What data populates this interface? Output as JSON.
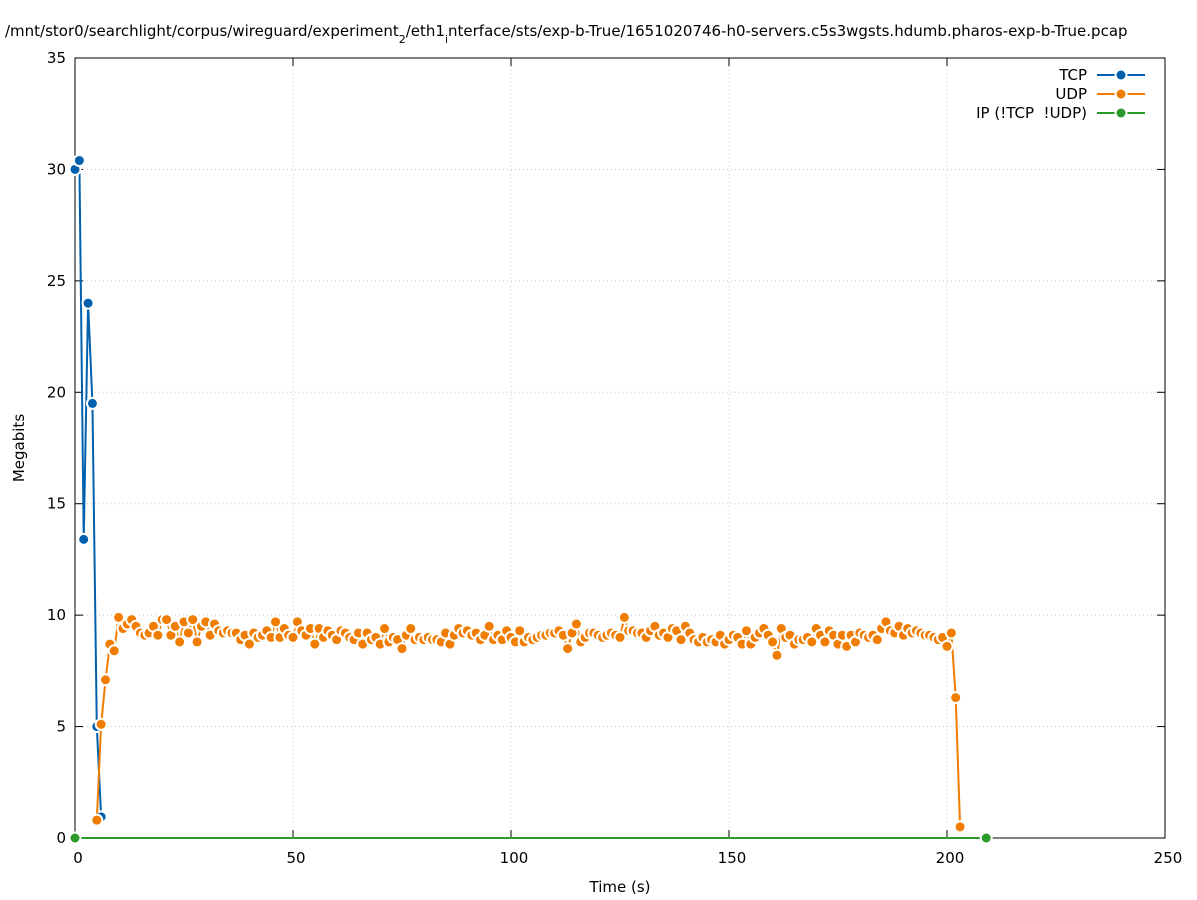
{
  "chart_data": {
    "type": "line",
    "title": [
      {
        "text": "/mnt/stor0/searchlight/corpus/wireguard/experiment",
        "sub": false
      },
      {
        "text": "2",
        "sub": true
      },
      {
        "text": "/eth1",
        "sub": false
      },
      {
        "text": "i",
        "sub": true
      },
      {
        "text": "nterface/sts/exp-b-True/1651020746-h0-servers.c5s3wgsts.hdumb.pharos-exp-b-True.pcap",
        "sub": false
      }
    ],
    "x_label": "Time (s)",
    "y_label": "Megabits",
    "xlim": [
      0,
      250
    ],
    "ylim": [
      0,
      35
    ],
    "xticks": [
      0,
      50,
      100,
      150,
      200,
      250
    ],
    "yticks": [
      0,
      5,
      10,
      15,
      20,
      25,
      30,
      35
    ],
    "grid": true,
    "legend": "top-right",
    "series": [
      {
        "name": "TCP",
        "color": "#0060ad",
        "x": [
          0,
          1,
          2,
          3,
          4,
          5,
          6
        ],
        "values": [
          30.0,
          30.4,
          13.4,
          24.0,
          19.5,
          5.0,
          0.95
        ]
      },
      {
        "name": "UDP",
        "color": "#f07c00",
        "x": [
          5,
          6,
          7,
          8,
          9,
          10,
          11,
          12,
          13,
          14,
          15,
          16,
          17,
          18,
          19,
          20,
          21,
          22,
          23,
          24,
          25,
          26,
          27,
          28,
          29,
          30,
          31,
          32,
          33,
          34,
          35,
          36,
          37,
          38,
          39,
          40,
          41,
          42,
          43,
          44,
          45,
          46,
          47,
          48,
          49,
          50,
          51,
          52,
          53,
          54,
          55,
          56,
          57,
          58,
          59,
          60,
          61,
          62,
          63,
          64,
          65,
          66,
          67,
          68,
          69,
          70,
          71,
          72,
          73,
          74,
          75,
          76,
          77,
          78,
          79,
          80,
          81,
          82,
          83,
          84,
          85,
          86,
          87,
          88,
          89,
          90,
          91,
          92,
          93,
          94,
          95,
          96,
          97,
          98,
          99,
          100,
          101,
          102,
          103,
          104,
          105,
          106,
          107,
          108,
          109,
          110,
          111,
          112,
          113,
          114,
          115,
          116,
          117,
          118,
          119,
          120,
          121,
          122,
          123,
          124,
          125,
          126,
          127,
          128,
          129,
          130,
          131,
          132,
          133,
          134,
          135,
          136,
          137,
          138,
          139,
          140,
          141,
          142,
          143,
          144,
          145,
          146,
          147,
          148,
          149,
          150,
          151,
          152,
          153,
          154,
          155,
          156,
          157,
          158,
          159,
          160,
          161,
          162,
          163,
          164,
          165,
          166,
          167,
          168,
          169,
          170,
          171,
          172,
          173,
          174,
          175,
          176,
          177,
          178,
          179,
          180,
          181,
          182,
          183,
          184,
          185,
          186,
          187,
          188,
          189,
          190,
          191,
          192,
          193,
          194,
          195,
          196,
          197,
          198,
          199,
          200,
          201,
          202,
          203
        ],
        "values": [
          0.8,
          5.1,
          7.1,
          8.7,
          8.4,
          9.9,
          9.4,
          9.6,
          9.8,
          9.5,
          9.2,
          9.1,
          9.2,
          9.5,
          9.1,
          9.8,
          9.8,
          9.1,
          9.5,
          8.8,
          9.7,
          9.2,
          9.8,
          8.8,
          9.5,
          9.7,
          9.1,
          9.6,
          9.3,
          9.2,
          9.3,
          9.2,
          9.2,
          8.9,
          9.1,
          8.7,
          9.2,
          9.0,
          9.1,
          9.3,
          9.0,
          9.7,
          9.0,
          9.4,
          9.1,
          9.0,
          9.7,
          9.3,
          9.1,
          9.4,
          8.7,
          9.4,
          9.0,
          9.3,
          9.1,
          8.9,
          9.3,
          9.2,
          9.0,
          8.9,
          9.2,
          8.7,
          9.2,
          8.9,
          9.0,
          8.7,
          9.4,
          8.8,
          9.0,
          8.9,
          8.5,
          9.1,
          9.4,
          8.9,
          9.0,
          8.9,
          9.0,
          8.9,
          8.9,
          8.8,
          9.2,
          8.7,
          9.1,
          9.4,
          9.2,
          9.3,
          9.1,
          9.2,
          8.9,
          9.1,
          9.5,
          8.9,
          9.1,
          8.9,
          9.3,
          9.0,
          8.8,
          9.3,
          8.8,
          9.0,
          8.9,
          9.0,
          9.1,
          9.1,
          9.2,
          9.2,
          9.3,
          9.1,
          8.5,
          9.2,
          9.6,
          8.8,
          9.0,
          9.2,
          9.2,
          9.1,
          9.0,
          9.1,
          9.2,
          9.1,
          9.0,
          9.9,
          9.3,
          9.3,
          9.2,
          9.2,
          9.0,
          9.3,
          9.5,
          9.1,
          9.2,
          9.0,
          9.4,
          9.3,
          8.9,
          9.5,
          9.2,
          8.9,
          8.8,
          9.0,
          8.8,
          8.9,
          8.8,
          9.1,
          8.7,
          8.9,
          9.1,
          9.0,
          8.7,
          9.3,
          8.7,
          9.0,
          9.2,
          9.4,
          9.1,
          8.8,
          8.2,
          9.4,
          9.0,
          9.1,
          8.7,
          8.9,
          8.9,
          9.0,
          8.8,
          9.4,
          9.1,
          8.8,
          9.3,
          9.1,
          8.7,
          9.1,
          8.6,
          9.1,
          8.8,
          9.2,
          9.1,
          9.0,
          9.1,
          8.9,
          9.4,
          9.7,
          9.3,
          9.2,
          9.5,
          9.1,
          9.4,
          9.2,
          9.3,
          9.2,
          9.1,
          9.1,
          9.0,
          8.9,
          9.0,
          8.6,
          9.2,
          6.3,
          0.5
        ]
      },
      {
        "name": "IP (!TCP  !UDP)",
        "color": "#2a9a2a",
        "x": [
          0,
          209
        ],
        "values": [
          0,
          0
        ]
      }
    ]
  }
}
